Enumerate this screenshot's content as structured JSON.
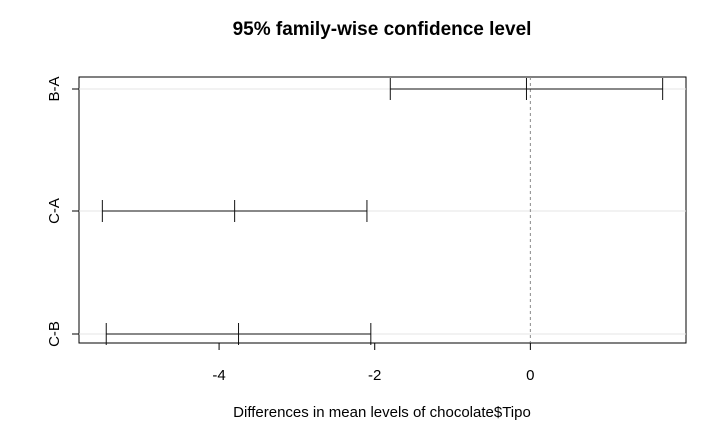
{
  "chart_data": {
    "type": "error-bar",
    "title": "95% family-wise confidence level",
    "xlabel": "Differences in mean levels of chocolate$Tipo",
    "ylabel": "",
    "xlim": [
      -5.8,
      2.0
    ],
    "xticks": [
      -4,
      -2,
      0
    ],
    "xtick_labels": [
      "-4",
      "-2",
      "0"
    ],
    "reference_line_x": 0,
    "grid": "horizontal",
    "comparisons": [
      {
        "label": "B-A",
        "lower": -1.8,
        "estimate": -0.05,
        "upper": 1.7
      },
      {
        "label": "C-A",
        "lower": -5.5,
        "estimate": -3.8,
        "upper": -2.1
      },
      {
        "label": "C-B",
        "lower": -5.45,
        "estimate": -3.75,
        "upper": -2.05
      }
    ]
  }
}
